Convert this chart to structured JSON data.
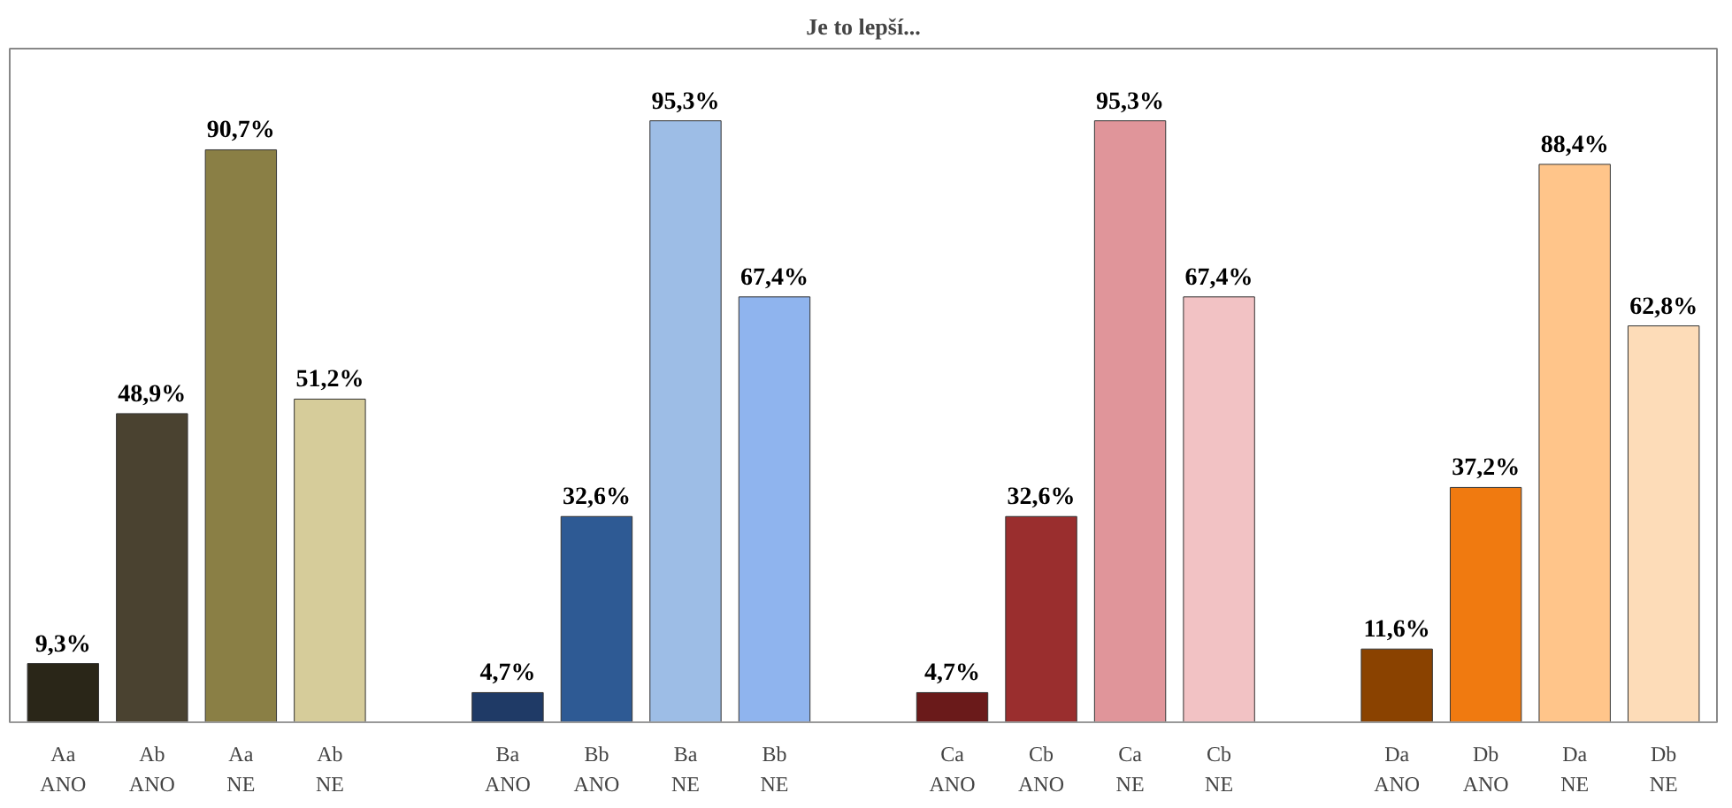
{
  "chart_data": {
    "type": "bar",
    "title": "Je to lepší...",
    "categories": [
      "Aa\nANO",
      "Ab\nANO",
      "Aa\nNE",
      "Ab\nNE",
      null,
      "Ba\nANO",
      "Bb\nANO",
      "Ba\nNE",
      "Bb\nNE",
      null,
      "Ca\nANO",
      "Cb\nANO",
      "Ca\nNE",
      "Cb\nNE",
      null,
      "Da\nANO",
      "Db\nANO",
      "Da\nNE",
      "Db\nNE"
    ],
    "values": [
      9.3,
      48.9,
      90.7,
      51.2,
      null,
      4.7,
      32.6,
      95.3,
      67.4,
      null,
      4.7,
      32.6,
      95.3,
      67.4,
      null,
      11.6,
      37.2,
      88.4,
      62.8
    ],
    "value_labels": [
      "9,3%",
      "48,9%",
      "90,7%",
      "51,2%",
      null,
      "4,7%",
      "32,6%",
      "95,3%",
      "67,4%",
      null,
      "4,7%",
      "32,6%",
      "95,3%",
      "67,4%",
      null,
      "11,6%",
      "37,2%",
      "88,4%",
      "62,8%"
    ],
    "colors": [
      "#2a2618",
      "#4a4230",
      "#8a7f45",
      "#d6cc9a",
      "#ffffff",
      "#1f3a66",
      "#2e5a94",
      "#9dbde6",
      "#8fb4ee",
      "#ffffff",
      "#6a1a1a",
      "#9a2e2e",
      "#e0959a",
      "#f2c2c4",
      "#ffffff",
      "#8a4200",
      "#f07a10",
      "#ffc58a",
      "#fddcb8"
    ],
    "grid": false
  }
}
